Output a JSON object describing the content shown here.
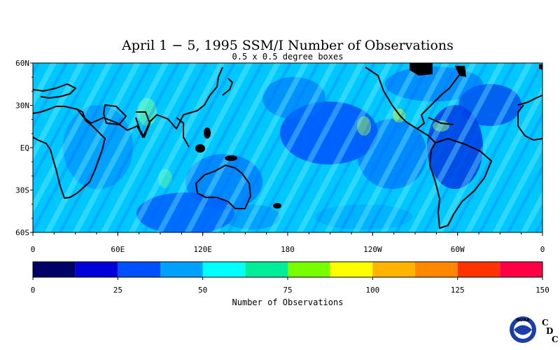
{
  "title": "April 1 − 5, 1995 SSM/I Number of Observations",
  "subtitle": "0.5 x 0.5 degree boxes",
  "map": {
    "projection": "equirectangular",
    "lon_range": [
      0,
      360
    ],
    "lat_range": [
      -60,
      60
    ],
    "lat_ticks": [
      "60N",
      "30N",
      "EQ",
      "30S",
      "60S"
    ],
    "lon_ticks": [
      "0",
      "60E",
      "120E",
      "180",
      "120W",
      "60W",
      "0"
    ],
    "dominant_field_color": "#00e5ff",
    "land_mask_color": "#000000"
  },
  "colorbar": {
    "colors": [
      "#000066",
      "#0000d8",
      "#0050ff",
      "#00a0ff",
      "#00ffff",
      "#00ee99",
      "#77ff00",
      "#ffff00",
      "#ffb400",
      "#ff8800",
      "#ff3300",
      "#ff0044"
    ],
    "tick_labels": [
      "0",
      "25",
      "50",
      "75",
      "100",
      "125",
      "150"
    ],
    "range": [
      0,
      150
    ],
    "label": "Number of Observations"
  },
  "logo": {
    "ring_text": "NOAA",
    "letters": [
      "C",
      "D",
      "C"
    ],
    "letter_color": "#dd0000"
  }
}
